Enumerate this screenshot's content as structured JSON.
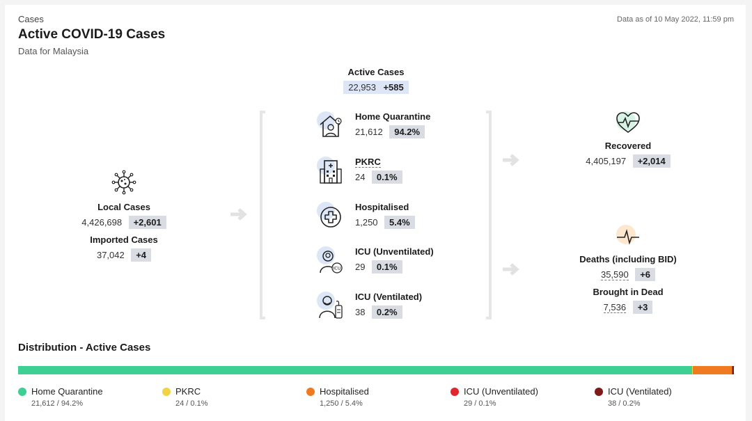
{
  "header": {
    "section": "Cases",
    "title": "Active COVID-19 Cases",
    "subtitle": "Data for Malaysia",
    "as_of": "Data as of 10 May 2022, 11:59 pm"
  },
  "active": {
    "label": "Active Cases",
    "value": "22,953",
    "change": "+585"
  },
  "left": {
    "local_label": "Local Cases",
    "local_value": "4,426,698",
    "local_change": "+2,601",
    "imported_label": "Imported Cases",
    "imported_value": "37,042",
    "imported_change": "+4"
  },
  "middle": [
    {
      "label": "Home Quarantine",
      "value": "21,612",
      "pct": "94.2%",
      "icon": "house-person-icon"
    },
    {
      "label": "PKRC",
      "value": "24",
      "pct": "0.1%",
      "icon": "building-icon"
    },
    {
      "label": "Hospitalised",
      "value": "1,250",
      "pct": "5.4%",
      "icon": "medical-cross-icon"
    },
    {
      "label": "ICU (Unventilated)",
      "value": "29",
      "pct": "0.1%",
      "icon": "icu-patient-icon"
    },
    {
      "label": "ICU (Ventilated)",
      "value": "38",
      "pct": "0.2%",
      "icon": "ventilated-patient-icon"
    }
  ],
  "right": {
    "recovered_label": "Recovered",
    "recovered_value": "4,405,197",
    "recovered_change": "+2,014",
    "deaths_label": "Deaths (including BID)",
    "deaths_value": "35,590",
    "deaths_change": "+6",
    "bid_label": "Brought in Dead",
    "bid_value": "7,536",
    "bid_change": "+3"
  },
  "distribution": {
    "title": "Distribution - Active Cases",
    "segments": [
      {
        "name": "Home Quarantine",
        "text": "21,612 / 94.2%",
        "percent": 94.2,
        "color": "#3ecf93"
      },
      {
        "name": "PKRC",
        "text": "24 / 0.1%",
        "percent": 0.1,
        "color": "#f2d246"
      },
      {
        "name": "Hospitalised",
        "text": "1,250 / 5.4%",
        "percent": 5.4,
        "color": "#f07a1f"
      },
      {
        "name": "ICU (Unventilated)",
        "text": "29 / 0.1%",
        "percent": 0.1,
        "color": "#e0272c"
      },
      {
        "name": "ICU (Ventilated)",
        "text": "38 / 0.2%",
        "percent": 0.2,
        "color": "#7d1a1a"
      }
    ]
  }
}
